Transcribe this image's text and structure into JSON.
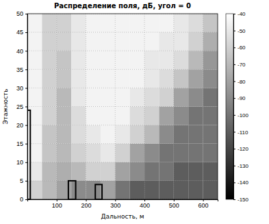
{
  "chart_data": {
    "type": "heatmap",
    "title": "Распределение поля, дБ, угол = 0",
    "x_label": "Дальность, м",
    "y_label": "Этажность",
    "xlim": [
      0,
      650
    ],
    "xticks": [
      100,
      200,
      300,
      400,
      500,
      600
    ],
    "ylim": [
      0,
      50
    ],
    "yticks": [
      0,
      5,
      10,
      15,
      20,
      25,
      30,
      35,
      40,
      45,
      50
    ],
    "grid": true,
    "x_bins": [
      0,
      50,
      100,
      150,
      200,
      250,
      300,
      350,
      400,
      450,
      500,
      550,
      600,
      650
    ],
    "y_bins": [
      0,
      5,
      10,
      15,
      20,
      25,
      30,
      35,
      40,
      45,
      50
    ],
    "cells": [
      [
        -60,
        -70,
        -80,
        -90,
        -90,
        -80,
        -100,
        -110,
        -110,
        -110,
        -110,
        -110,
        -110
      ],
      [
        -50,
        -70,
        -75,
        -70,
        -60,
        -60,
        -80,
        -90,
        -100,
        -100,
        -110,
        -110,
        -110
      ],
      [
        -45,
        -65,
        -70,
        -60,
        -55,
        -50,
        -60,
        -80,
        -90,
        -100,
        -100,
        -100,
        -100
      ],
      [
        -45,
        -65,
        -70,
        -55,
        -50,
        -45,
        -50,
        -60,
        -70,
        -90,
        -100,
        -100,
        -100
      ],
      [
        -45,
        -60,
        -70,
        -55,
        -45,
        -45,
        -45,
        -55,
        -60,
        -80,
        -90,
        -100,
        -100
      ],
      [
        -45,
        -60,
        -70,
        -50,
        -45,
        -45,
        -45,
        -50,
        -55,
        -60,
        -80,
        -90,
        -100
      ],
      [
        -45,
        -60,
        -65,
        -50,
        -45,
        -45,
        -45,
        -45,
        -50,
        -55,
        -65,
        -80,
        -90
      ],
      [
        -45,
        -60,
        -65,
        -50,
        -45,
        -45,
        -45,
        -45,
        -50,
        -50,
        -55,
        -70,
        -85
      ],
      [
        -45,
        -60,
        -60,
        -50,
        -45,
        -45,
        -45,
        -45,
        -45,
        -50,
        -50,
        -60,
        -75
      ],
      [
        -45,
        -60,
        -60,
        -50,
        -45,
        -45,
        -45,
        -45,
        -45,
        -45,
        -50,
        -55,
        -65
      ]
    ],
    "buildings": [
      {
        "x": [
          0,
          10
        ],
        "height": 24
      },
      {
        "x": [
          140,
          165
        ],
        "height": 5
      },
      {
        "x": [
          232,
          255
        ],
        "height": 4
      }
    ],
    "colorbar_range": [
      -150,
      -40
    ],
    "colorbar_ticks": [
      -40,
      -50,
      -60,
      -70,
      -80,
      -90,
      -100,
      -110,
      -120,
      -130,
      -140,
      -150
    ]
  }
}
